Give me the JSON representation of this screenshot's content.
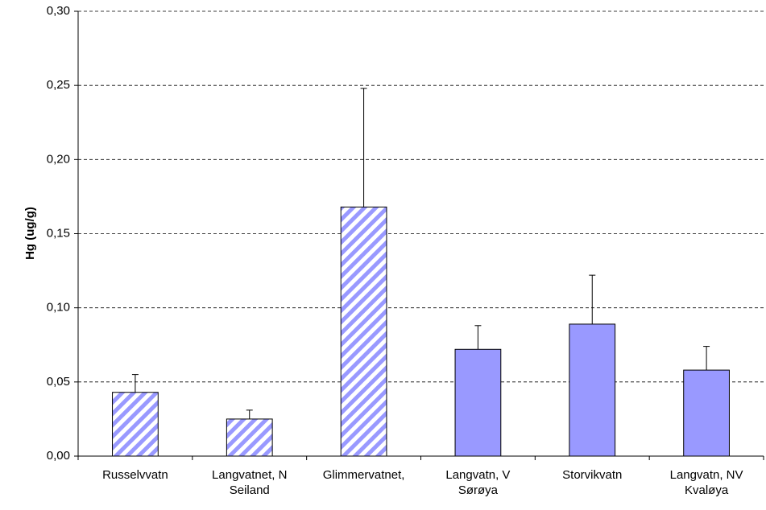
{
  "chart_data": {
    "type": "bar",
    "ylabel": "Hg (ug/g)",
    "categories": [
      "Russelvvatn",
      "Langvatnet, N\nSeiland",
      "Glimmervatnet,",
      "Langvatn, V\nSørøya",
      "Storvikvatn",
      "Langvatn, NV\nKvaløya"
    ],
    "values": [
      0.043,
      0.025,
      0.168,
      0.072,
      0.089,
      0.058
    ],
    "errors": [
      0.012,
      0.006,
      0.08,
      0.016,
      0.033,
      0.016
    ],
    "hatched": [
      true,
      true,
      true,
      false,
      false,
      false
    ],
    "color": "#9999ff",
    "ylim": [
      0,
      0.3
    ],
    "yticks": [
      {
        "value": 0,
        "label": "0,00"
      },
      {
        "value": 0.05,
        "label": "0,05"
      },
      {
        "value": 0.1,
        "label": "0,10"
      },
      {
        "value": 0.15,
        "label": "0,15"
      },
      {
        "value": 0.2,
        "label": "0,20"
      },
      {
        "value": 0.25,
        "label": "0,25"
      },
      {
        "value": 0.3,
        "label": "0,30"
      }
    ],
    "grid": true
  }
}
